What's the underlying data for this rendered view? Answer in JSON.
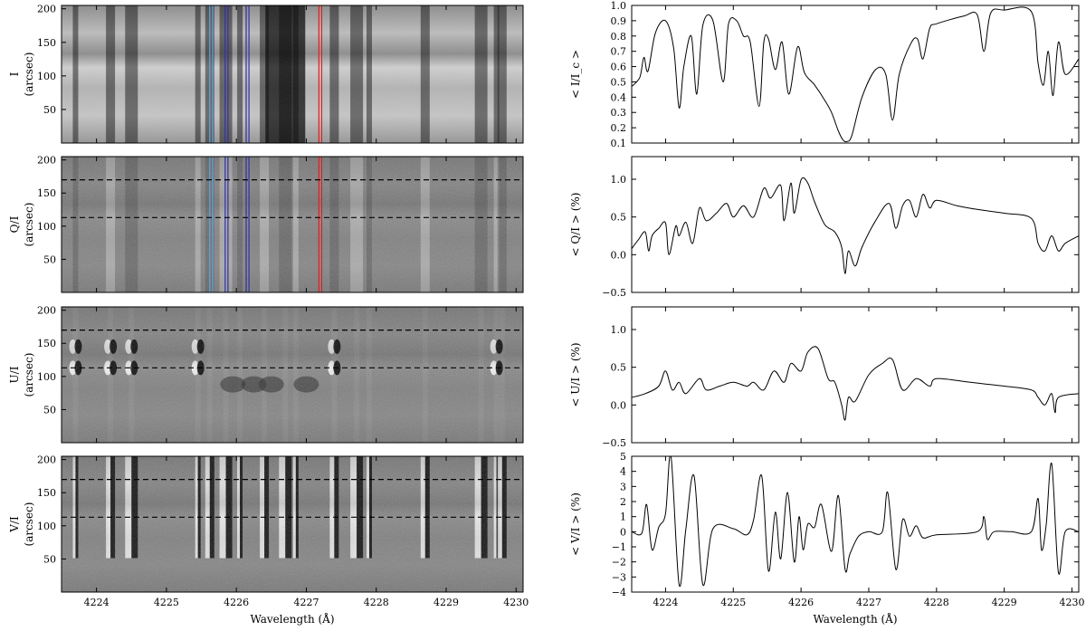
{
  "chart_data": [
    {
      "panel": "image",
      "type": "heatmap",
      "ylabel_lines": [
        "I",
        "(arcsec)"
      ],
      "colormap": "gray",
      "xlim": [
        4223.5,
        4230.1
      ],
      "ylim": [
        0,
        205
      ],
      "yticks": [
        "50",
        "100",
        "150",
        "200"
      ],
      "dashed_rows": [],
      "wavelength_markers": true
    },
    {
      "panel": "image",
      "type": "heatmap",
      "ylabel_lines": [
        "Q/I",
        "(arcsec)"
      ],
      "colormap": "gray",
      "xlim": [
        4223.5,
        4230.1
      ],
      "ylim": [
        0,
        205
      ],
      "yticks": [
        "50",
        "100",
        "150",
        "200"
      ],
      "dashed_rows": [
        113,
        170
      ],
      "wavelength_markers": true
    },
    {
      "panel": "image",
      "type": "heatmap",
      "ylabel_lines": [
        "U/I",
        "(arcsec)"
      ],
      "colormap": "gray",
      "xlim": [
        4223.5,
        4230.1
      ],
      "ylim": [
        0,
        205
      ],
      "yticks": [
        "50",
        "100",
        "150",
        "200"
      ],
      "dashed_rows": [
        113,
        170
      ],
      "wavelength_markers": false
    },
    {
      "panel": "image",
      "type": "heatmap",
      "ylabel_lines": [
        "V/I",
        "(arcsec)"
      ],
      "colormap": "gray",
      "xlim": [
        4223.5,
        4230.1
      ],
      "ylim": [
        0,
        205
      ],
      "yticks": [
        "50",
        "100",
        "150",
        "200"
      ],
      "xticks": [
        "4224",
        "4225",
        "4226",
        "4227",
        "4228",
        "4229",
        "4230"
      ],
      "xlabel": "Wavelength (Å)",
      "dashed_rows": [
        113,
        170
      ],
      "wavelength_markers": false
    },
    {
      "panel": "profile",
      "type": "line",
      "ylabel": "< I/I_c >",
      "xlim": [
        4223.5,
        4230.1
      ],
      "ylim": [
        0.1,
        1.0
      ],
      "yticks": [
        "0.1",
        "0.2",
        "0.3",
        "0.4",
        "0.5",
        "0.6",
        "0.7",
        "0.8",
        "0.9",
        "1.0"
      ],
      "x": [
        4223.5,
        4223.62,
        4223.68,
        4223.74,
        4223.85,
        4224.0,
        4224.12,
        4224.2,
        4224.27,
        4224.38,
        4224.46,
        4224.55,
        4224.7,
        4224.85,
        4224.93,
        4225.05,
        4225.15,
        4225.25,
        4225.38,
        4225.45,
        4225.52,
        4225.62,
        4225.72,
        4225.82,
        4225.95,
        4226.05,
        4226.2,
        4226.35,
        4226.45,
        4226.55,
        4226.62,
        4226.68,
        4226.75,
        4226.9,
        4227.1,
        4227.25,
        4227.35,
        4227.45,
        4227.62,
        4227.72,
        4227.8,
        4227.9,
        4228.0,
        4228.4,
        4228.6,
        4228.7,
        4228.8,
        4229.0,
        4229.4,
        4229.5,
        4229.58,
        4229.65,
        4229.72,
        4229.8,
        4229.9,
        4230.1
      ],
      "values": [
        0.47,
        0.53,
        0.66,
        0.57,
        0.82,
        0.9,
        0.72,
        0.33,
        0.6,
        0.8,
        0.42,
        0.87,
        0.9,
        0.5,
        0.88,
        0.9,
        0.8,
        0.76,
        0.34,
        0.76,
        0.78,
        0.58,
        0.76,
        0.42,
        0.73,
        0.56,
        0.48,
        0.38,
        0.3,
        0.18,
        0.12,
        0.11,
        0.15,
        0.4,
        0.58,
        0.55,
        0.25,
        0.55,
        0.75,
        0.78,
        0.65,
        0.85,
        0.88,
        0.93,
        0.94,
        0.7,
        0.95,
        0.97,
        0.96,
        0.62,
        0.48,
        0.7,
        0.41,
        0.76,
        0.55,
        0.65
      ]
    },
    {
      "panel": "profile",
      "type": "line",
      "ylabel": "< Q/I > (%)",
      "xlim": [
        4223.5,
        4230.1
      ],
      "ylim": [
        -0.5,
        1.3
      ],
      "yticks": [
        "−0.5",
        "0.0",
        "0.5",
        "1.0"
      ],
      "x": [
        4223.5,
        4223.6,
        4223.7,
        4223.75,
        4223.8,
        4223.9,
        4224.0,
        4224.05,
        4224.15,
        4224.2,
        4224.3,
        4224.4,
        4224.5,
        4224.6,
        4224.75,
        4224.9,
        4225.0,
        4225.15,
        4225.3,
        4225.45,
        4225.55,
        4225.7,
        4225.75,
        4225.85,
        4225.9,
        4226.0,
        4226.1,
        4226.2,
        4226.35,
        4226.5,
        4226.6,
        4226.65,
        4226.7,
        4226.8,
        4226.9,
        4227.1,
        4227.3,
        4227.4,
        4227.5,
        4227.6,
        4227.7,
        4227.8,
        4227.9,
        4228.0,
        4228.3,
        4228.6,
        4229.0,
        4229.4,
        4229.5,
        4229.6,
        4229.7,
        4229.8,
        4229.9,
        4230.1
      ],
      "values": [
        0.08,
        0.2,
        0.3,
        0.05,
        0.25,
        0.35,
        0.42,
        0.0,
        0.38,
        0.25,
        0.43,
        0.15,
        0.62,
        0.45,
        0.55,
        0.68,
        0.5,
        0.65,
        0.5,
        0.88,
        0.75,
        0.92,
        0.45,
        0.95,
        0.55,
        0.99,
        0.95,
        0.7,
        0.4,
        0.3,
        0.1,
        -0.25,
        0.05,
        -0.15,
        0.1,
        0.45,
        0.68,
        0.35,
        0.65,
        0.72,
        0.5,
        0.8,
        0.62,
        0.72,
        0.65,
        0.6,
        0.55,
        0.48,
        0.15,
        0.05,
        0.25,
        0.05,
        0.15,
        0.25
      ]
    },
    {
      "panel": "profile",
      "type": "line",
      "ylabel": "< U/I > (%)",
      "xlim": [
        4223.5,
        4230.1
      ],
      "ylim": [
        -0.5,
        1.3
      ],
      "yticks": [
        "−0.5",
        "0.0",
        "0.5",
        "1.0"
      ],
      "x": [
        4223.5,
        4223.7,
        4223.9,
        4224.0,
        4224.1,
        4224.2,
        4224.3,
        4224.5,
        4224.6,
        4224.8,
        4225.0,
        4225.2,
        4225.3,
        4225.45,
        4225.6,
        4225.75,
        4225.85,
        4226.0,
        4226.1,
        4226.25,
        4226.4,
        4226.5,
        4226.6,
        4226.65,
        4226.7,
        4226.8,
        4227.0,
        4227.2,
        4227.35,
        4227.5,
        4227.7,
        4227.9,
        4228.0,
        4228.5,
        4229.0,
        4229.4,
        4229.5,
        4229.6,
        4229.7,
        4229.75,
        4229.8,
        4230.1
      ],
      "values": [
        0.1,
        0.15,
        0.25,
        0.45,
        0.2,
        0.3,
        0.15,
        0.35,
        0.2,
        0.25,
        0.3,
        0.25,
        0.3,
        0.2,
        0.45,
        0.3,
        0.55,
        0.45,
        0.7,
        0.75,
        0.35,
        0.3,
        0.0,
        -0.2,
        0.1,
        0.05,
        0.4,
        0.55,
        0.6,
        0.2,
        0.35,
        0.25,
        0.35,
        0.3,
        0.25,
        0.2,
        0.1,
        0.0,
        0.15,
        -0.1,
        0.1,
        0.15
      ]
    },
    {
      "panel": "profile",
      "type": "line",
      "ylabel": "< V/I > (%)",
      "xlim": [
        4223.5,
        4230.1
      ],
      "ylim": [
        -4,
        5
      ],
      "yticks": [
        "−4",
        "−3",
        "−2",
        "−1",
        "0",
        "1",
        "2",
        "3",
        "4",
        "5"
      ],
      "xticks": [
        "4224",
        "4225",
        "4226",
        "4227",
        "4228",
        "4229",
        "4230"
      ],
      "xlabel": "Wavelength (Å)",
      "x": [
        4223.5,
        4223.65,
        4223.72,
        4223.8,
        4223.9,
        4224.0,
        4224.08,
        4224.2,
        4224.3,
        4224.42,
        4224.55,
        4224.7,
        4225.0,
        4225.2,
        4225.3,
        4225.42,
        4225.52,
        4225.62,
        4225.7,
        4225.8,
        4225.9,
        4225.97,
        4226.03,
        4226.1,
        4226.2,
        4226.3,
        4226.45,
        4226.55,
        4226.65,
        4226.72,
        4226.85,
        4227.0,
        4227.2,
        4227.28,
        4227.4,
        4227.5,
        4227.6,
        4227.7,
        4227.8,
        4228.0,
        4228.6,
        4228.7,
        4228.75,
        4228.85,
        4229.1,
        4229.4,
        4229.5,
        4229.55,
        4229.62,
        4229.7,
        4229.8,
        4229.9,
        4230.1
      ],
      "values": [
        0.0,
        -0.1,
        1.8,
        -1.2,
        0.3,
        1.2,
        5.0,
        -3.5,
        0.2,
        3.7,
        -3.5,
        0.2,
        0.2,
        -0.2,
        0.8,
        3.7,
        -2.6,
        1.3,
        -1.8,
        2.6,
        -2.0,
        1.0,
        -1.2,
        0.5,
        0.3,
        1.8,
        -1.3,
        2.4,
        -2.5,
        -1.5,
        -0.3,
        0.0,
        0.0,
        2.6,
        -2.5,
        0.8,
        -0.3,
        0.4,
        -0.4,
        -0.2,
        0.0,
        1.0,
        -0.5,
        0.0,
        0.0,
        0.0,
        2.2,
        -1.2,
        0.5,
        4.5,
        -2.7,
        0.0,
        0.0
      ]
    }
  ]
}
